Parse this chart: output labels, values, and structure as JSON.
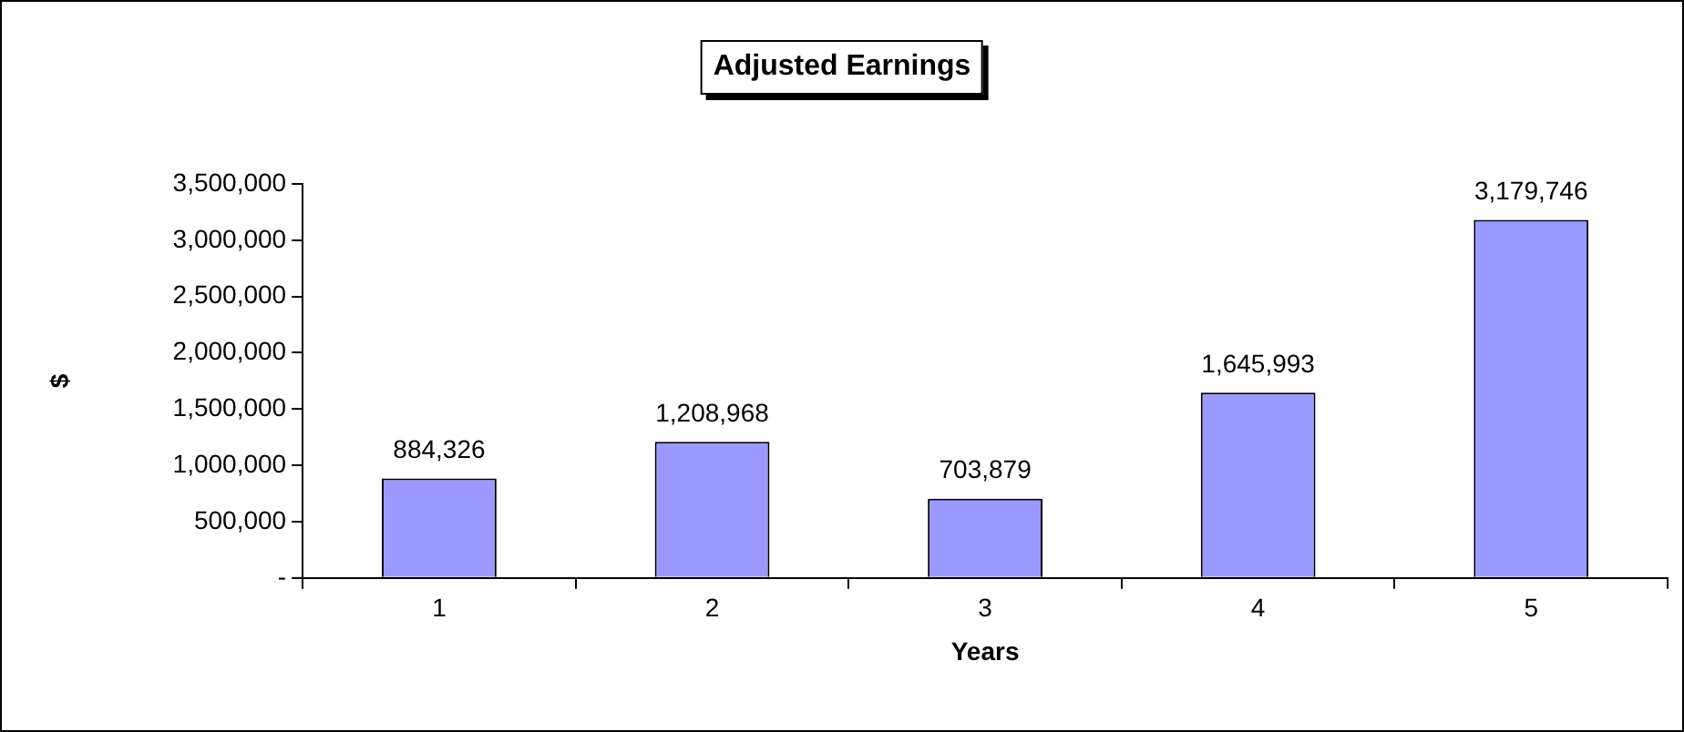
{
  "chart_data": {
    "type": "bar",
    "title": "Adjusted Earnings",
    "xlabel": "Years",
    "ylabel": "$",
    "categories": [
      "1",
      "2",
      "3",
      "4",
      "5"
    ],
    "values": [
      884326,
      1208968,
      703879,
      1645993,
      3179746
    ],
    "value_labels": [
      "884,326",
      "1,208,968",
      "703,879",
      "1,645,993",
      "3,179,746"
    ],
    "color": "#9999ff",
    "ylim": [
      0,
      3500000
    ],
    "yticks": [
      {
        "value": 0,
        "label": "-"
      },
      {
        "value": 500000,
        "label": "500,000"
      },
      {
        "value": 1000000,
        "label": "1,000,000"
      },
      {
        "value": 1500000,
        "label": "1,500,000"
      },
      {
        "value": 2000000,
        "label": "2,000,000"
      },
      {
        "value": 2500000,
        "label": "2,500,000"
      },
      {
        "value": 3000000,
        "label": "3,000,000"
      },
      {
        "value": 3500000,
        "label": "3,500,000"
      }
    ],
    "grid": false,
    "legend": false
  }
}
